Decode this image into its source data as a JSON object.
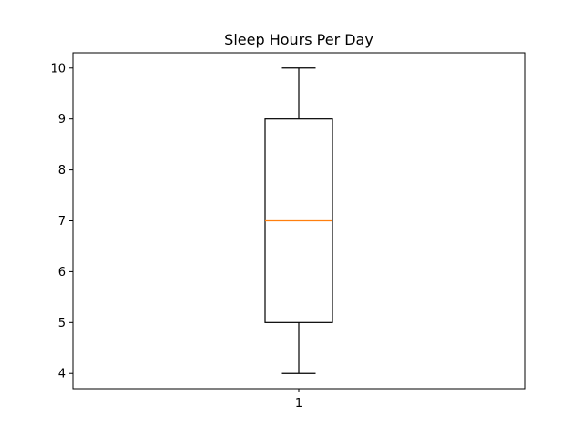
{
  "chart_data": {
    "type": "box",
    "title": "Sleep Hours Per Day",
    "xlabel": "",
    "ylabel": "",
    "categories": [
      "1"
    ],
    "ylim": [
      3.7,
      10.3
    ],
    "yticks": [
      4,
      5,
      6,
      7,
      8,
      9,
      10
    ],
    "grid": false,
    "boxes": [
      {
        "category": "1",
        "whisker_low": 4,
        "q1": 5,
        "median": 7,
        "q3": 9,
        "whisker_high": 10
      }
    ],
    "colors": {
      "box": "#000000",
      "median": "#ff7f0e",
      "axes": "#000000"
    }
  }
}
